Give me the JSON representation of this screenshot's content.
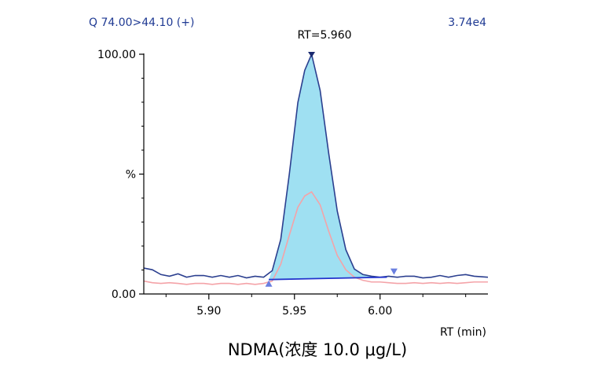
{
  "header": {
    "transition": "Q 74.00>44.10 (+)",
    "intensity": "3.74e4"
  },
  "caption": "NDMA(浓度 10.0  μg/L)",
  "peak_label": "RT=5.960",
  "chart_data": {
    "type": "line",
    "xlabel": "RT (min)",
    "ylabel": "%",
    "xlim": [
      5.862,
      6.063
    ],
    "ylim": [
      0,
      100
    ],
    "x_ticks": [
      {
        "value": 5.9,
        "label": "5.90"
      },
      {
        "value": 5.95,
        "label": "5.95"
      },
      {
        "value": 6.0,
        "label": "6.00"
      }
    ],
    "y_ticks": [
      {
        "value": 100,
        "label": "100.00"
      },
      {
        "value": 50,
        "label": "%"
      },
      {
        "value": 0,
        "label": "0.00"
      }
    ],
    "colors": {
      "quant": "#2b3f8f",
      "qual": "#f4a3a8",
      "fill": "#9fe0f2",
      "baseline": "#2233cc",
      "marker_apex": "#1a2a70",
      "marker_edge": "#6a7fe0"
    },
    "series": [
      {
        "role": "quantifier",
        "points": [
          [
            5.862,
            10.8
          ],
          [
            5.867,
            10.1
          ],
          [
            5.872,
            8.1
          ],
          [
            5.877,
            7.4
          ],
          [
            5.882,
            8.4
          ],
          [
            5.887,
            7.0
          ],
          [
            5.892,
            7.7
          ],
          [
            5.897,
            7.7
          ],
          [
            5.902,
            7.0
          ],
          [
            5.907,
            7.7
          ],
          [
            5.912,
            7.0
          ],
          [
            5.917,
            7.7
          ],
          [
            5.922,
            6.7
          ],
          [
            5.927,
            7.4
          ],
          [
            5.932,
            7.0
          ],
          [
            5.937,
            9.7
          ],
          [
            5.942,
            22.8
          ],
          [
            5.947,
            50.0
          ],
          [
            5.952,
            79.9
          ],
          [
            5.956,
            93.3
          ],
          [
            5.96,
            100.0
          ],
          [
            5.965,
            84.9
          ],
          [
            5.97,
            58.7
          ],
          [
            5.975,
            34.6
          ],
          [
            5.98,
            18.5
          ],
          [
            5.985,
            10.4
          ],
          [
            5.99,
            8.1
          ],
          [
            5.995,
            7.4
          ],
          [
            6.0,
            7.0
          ],
          [
            6.005,
            7.4
          ],
          [
            6.01,
            7.0
          ],
          [
            6.015,
            7.4
          ],
          [
            6.02,
            7.4
          ],
          [
            6.025,
            6.7
          ],
          [
            6.03,
            7.0
          ],
          [
            6.035,
            7.7
          ],
          [
            6.04,
            7.0
          ],
          [
            6.045,
            7.7
          ],
          [
            6.05,
            8.1
          ],
          [
            6.055,
            7.4
          ],
          [
            6.063,
            7.0
          ]
        ]
      },
      {
        "role": "qualifier",
        "points": [
          [
            5.862,
            5.4
          ],
          [
            5.867,
            4.7
          ],
          [
            5.872,
            4.4
          ],
          [
            5.877,
            4.7
          ],
          [
            5.882,
            4.4
          ],
          [
            5.887,
            4.0
          ],
          [
            5.892,
            4.4
          ],
          [
            5.897,
            4.4
          ],
          [
            5.902,
            4.0
          ],
          [
            5.907,
            4.4
          ],
          [
            5.912,
            4.4
          ],
          [
            5.917,
            4.0
          ],
          [
            5.922,
            4.4
          ],
          [
            5.927,
            4.0
          ],
          [
            5.932,
            4.4
          ],
          [
            5.937,
            5.4
          ],
          [
            5.942,
            12.4
          ],
          [
            5.947,
            24.5
          ],
          [
            5.952,
            36.2
          ],
          [
            5.956,
            40.9
          ],
          [
            5.96,
            42.6
          ],
          [
            5.965,
            37.2
          ],
          [
            5.97,
            26.2
          ],
          [
            5.975,
            16.1
          ],
          [
            5.98,
            10.1
          ],
          [
            5.985,
            7.0
          ],
          [
            5.99,
            5.7
          ],
          [
            5.995,
            5.0
          ],
          [
            6.0,
            5.0
          ],
          [
            6.005,
            4.7
          ],
          [
            6.01,
            4.4
          ],
          [
            6.015,
            4.4
          ],
          [
            6.02,
            4.7
          ],
          [
            6.025,
            4.4
          ],
          [
            6.03,
            4.7
          ],
          [
            6.035,
            4.4
          ],
          [
            6.04,
            4.7
          ],
          [
            6.045,
            4.4
          ],
          [
            6.05,
            4.7
          ],
          [
            6.055,
            5.0
          ],
          [
            6.063,
            5.0
          ]
        ]
      }
    ],
    "integration": {
      "start": {
        "x": 5.935,
        "y": 6.0
      },
      "end": {
        "x": 6.004,
        "y": 7.0
      },
      "apex": {
        "x": 5.96,
        "y": 100.0
      }
    }
  }
}
